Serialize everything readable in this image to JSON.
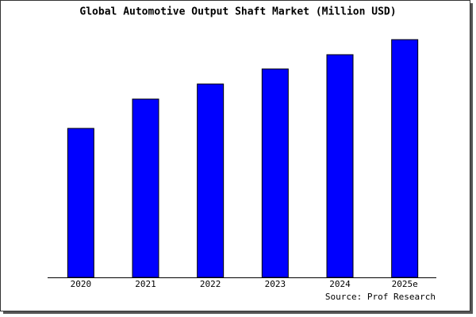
{
  "chart_data": {
    "type": "bar",
    "title": "Global Automotive Output Shaft Market (Million USD)",
    "categories": [
      "2020",
      "2021",
      "2022",
      "2023",
      "2024",
      "2025e"
    ],
    "values": [
      188,
      225,
      244,
      263,
      281,
      300
    ],
    "color": "#0000ff",
    "ylim": [
      0,
      302
    ],
    "source": "Source: Prof Research"
  }
}
